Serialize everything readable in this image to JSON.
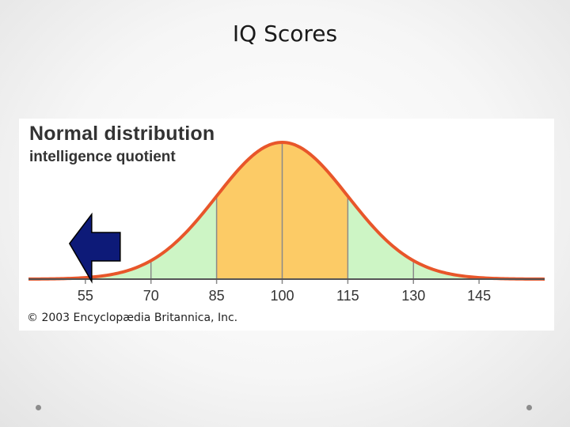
{
  "slide": {
    "title": "IQ Scores"
  },
  "figure": {
    "title": "Normal distribution",
    "subtitle": "intelligence quotient",
    "credit": "© 2003 Encyclopædia Britannica, Inc."
  },
  "chart_data": {
    "type": "area",
    "title": "Normal distribution",
    "subtitle": "intelligence quotient",
    "x_ticks": [
      55,
      70,
      85,
      100,
      115,
      130,
      145
    ],
    "xlim": [
      42,
      160
    ],
    "mean": 100,
    "sd": 15,
    "bands": [
      {
        "from": 42,
        "to": 85,
        "color": "#cdf5c5"
      },
      {
        "from": 85,
        "to": 115,
        "color": "#fccb66"
      },
      {
        "from": 115,
        "to": 160,
        "color": "#cdf5c5"
      }
    ],
    "curve_color": "#e8562a",
    "divider_color": "#8a8a8a",
    "axis_color": "#555555",
    "grid": false,
    "annotation": {
      "type": "arrow",
      "direction": "left",
      "at_x": 55,
      "color": "#0d1a78"
    }
  }
}
